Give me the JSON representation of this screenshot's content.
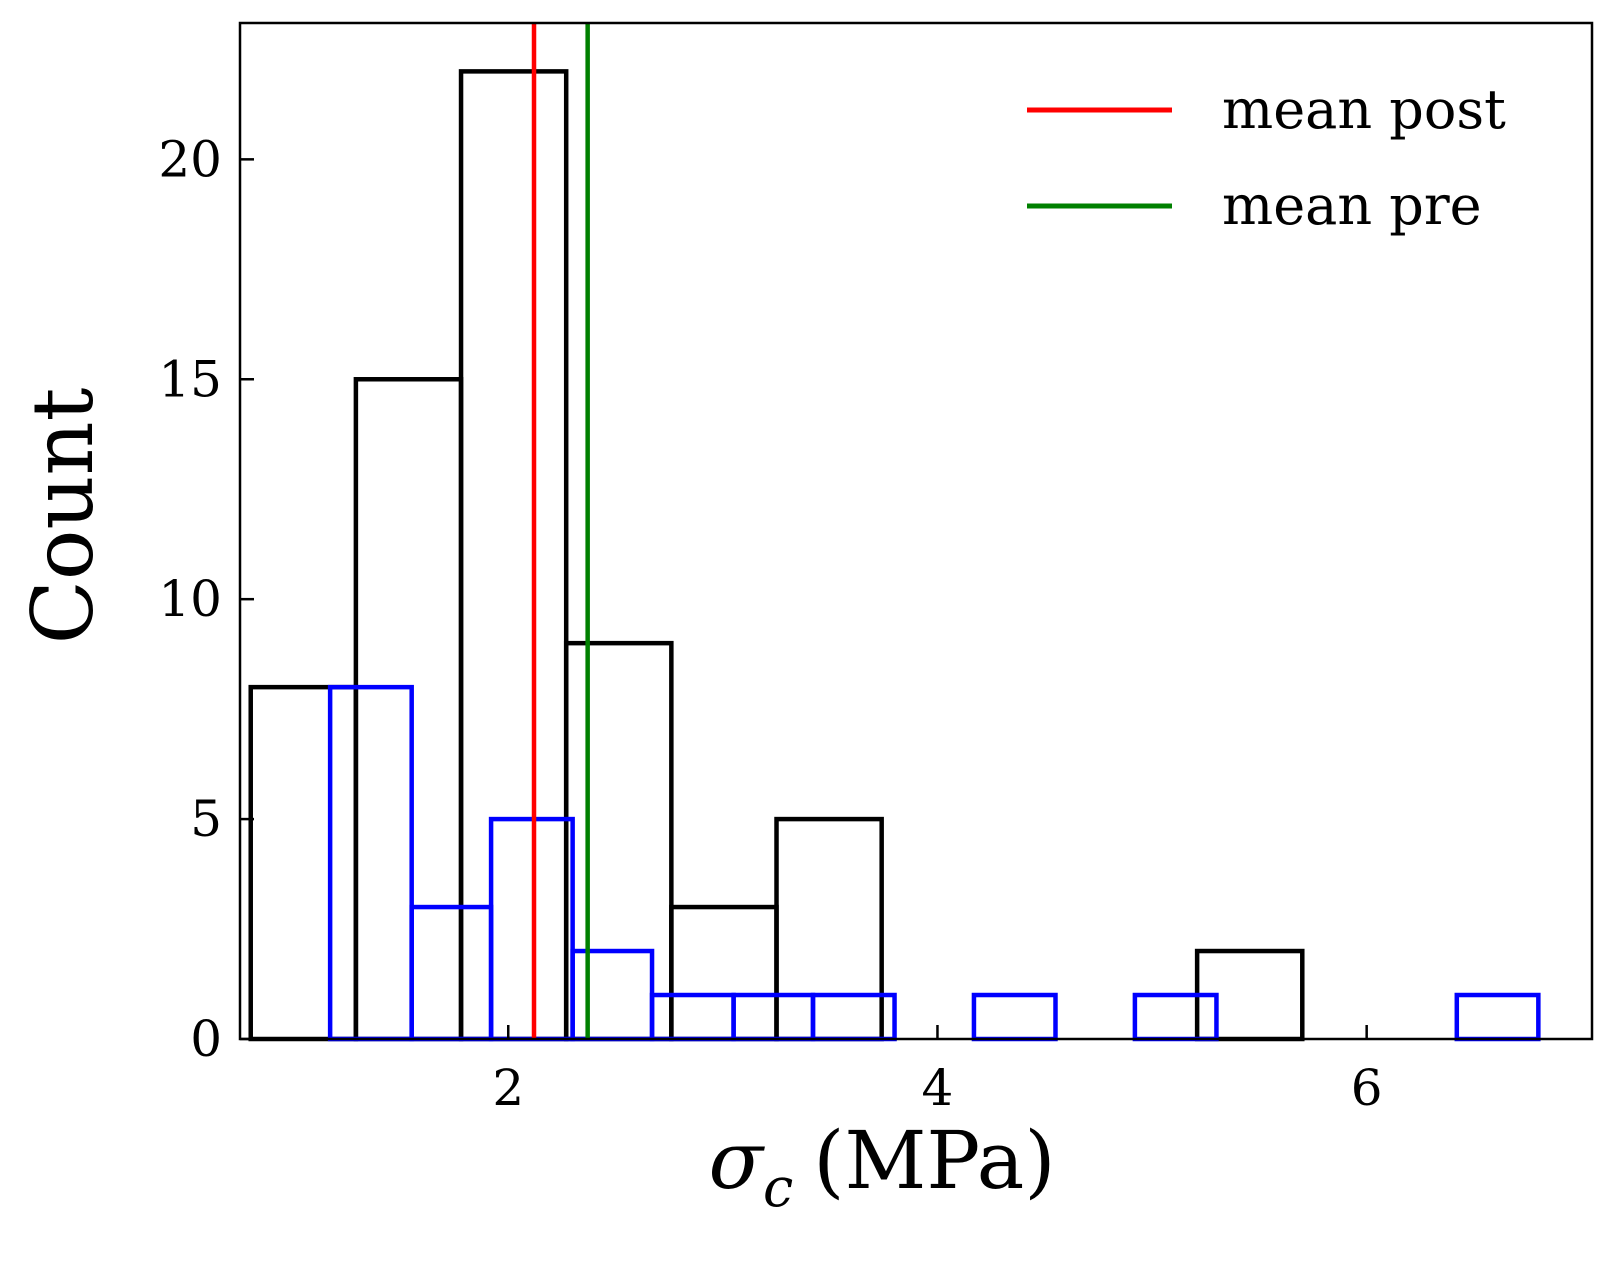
{
  "chart_data": {
    "type": "histogram",
    "xlabel": {
      "symbol": "σ",
      "subscript": "c",
      "unit": "(MPa)"
    },
    "ylabel": "Count",
    "xlim": [
      0.75,
      7.05
    ],
    "ylim": [
      0,
      23.1
    ],
    "xticks": [
      2,
      4,
      6
    ],
    "yticks": [
      0,
      5,
      10,
      15,
      20
    ],
    "grid": false,
    "legend_position": "top-right",
    "series": [
      {
        "color": "#000000",
        "bins": [
          {
            "x0": 0.8,
            "x1": 1.29,
            "count": 8
          },
          {
            "x0": 1.29,
            "x1": 1.78,
            "count": 15
          },
          {
            "x0": 1.78,
            "x1": 2.27,
            "count": 22
          },
          {
            "x0": 2.27,
            "x1": 2.76,
            "count": 9
          },
          {
            "x0": 2.76,
            "x1": 3.25,
            "count": 3
          },
          {
            "x0": 3.25,
            "x1": 3.74,
            "count": 5
          },
          {
            "x0": 3.74,
            "x1": 4.23,
            "count": 0
          },
          {
            "x0": 4.23,
            "x1": 4.72,
            "count": 0
          },
          {
            "x0": 4.72,
            "x1": 5.21,
            "count": 0
          },
          {
            "x0": 5.21,
            "x1": 5.7,
            "count": 2
          }
        ]
      },
      {
        "color": "#0000ff",
        "bins": [
          {
            "x0": 1.17,
            "x1": 1.55,
            "count": 8
          },
          {
            "x0": 1.55,
            "x1": 1.92,
            "count": 3
          },
          {
            "x0": 1.92,
            "x1": 2.3,
            "count": 5
          },
          {
            "x0": 2.3,
            "x1": 2.67,
            "count": 2
          },
          {
            "x0": 2.67,
            "x1": 3.05,
            "count": 1
          },
          {
            "x0": 3.05,
            "x1": 3.42,
            "count": 1
          },
          {
            "x0": 3.42,
            "x1": 3.8,
            "count": 1
          },
          {
            "x0": 3.8,
            "x1": 4.17,
            "count": 0
          },
          {
            "x0": 4.17,
            "x1": 4.55,
            "count": 1
          },
          {
            "x0": 4.55,
            "x1": 4.92,
            "count": 0
          },
          {
            "x0": 4.92,
            "x1": 5.3,
            "count": 1
          },
          {
            "x0": 5.3,
            "x1": 5.67,
            "count": 0
          },
          {
            "x0": 5.67,
            "x1": 6.05,
            "count": 0
          },
          {
            "x0": 6.05,
            "x1": 6.42,
            "count": 0
          },
          {
            "x0": 6.42,
            "x1": 6.8,
            "count": 1
          }
        ]
      }
    ],
    "mean_lines": [
      {
        "name": "mean post",
        "x": 2.12,
        "color": "#ff0000"
      },
      {
        "name": "mean pre",
        "x": 2.37,
        "color": "#008000"
      }
    ]
  }
}
